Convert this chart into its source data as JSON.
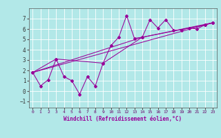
{
  "xlabel": "Windchill (Refroidissement éolien,°C)",
  "background_color": "#b2e8e8",
  "grid_color": "#ffffff",
  "line_color": "#990099",
  "xlim": [
    -0.5,
    23.5
  ],
  "ylim": [
    -1.6,
    8.0
  ],
  "xticks": [
    0,
    1,
    2,
    3,
    4,
    5,
    6,
    7,
    8,
    9,
    10,
    11,
    12,
    13,
    14,
    15,
    16,
    17,
    18,
    19,
    20,
    21,
    22,
    23
  ],
  "yticks": [
    -1,
    0,
    1,
    2,
    3,
    4,
    5,
    6,
    7
  ],
  "series1_x": [
    0,
    1,
    2,
    3,
    4,
    5,
    6,
    7,
    8,
    9,
    10,
    11,
    12,
    13,
    14,
    15,
    16,
    17,
    18,
    19,
    20,
    21,
    22,
    23
  ],
  "series1_y": [
    1.8,
    0.5,
    1.1,
    3.1,
    1.4,
    1.0,
    -0.3,
    1.4,
    0.5,
    2.7,
    4.4,
    5.2,
    7.3,
    5.1,
    5.2,
    6.9,
    6.1,
    6.9,
    5.9,
    5.9,
    6.1,
    6.0,
    6.4,
    6.6
  ],
  "series2_x": [
    0,
    3,
    9,
    14,
    22,
    23
  ],
  "series2_y": [
    1.8,
    3.1,
    2.7,
    5.2,
    6.4,
    6.6
  ],
  "series3_x": [
    0,
    23
  ],
  "series3_y": [
    1.8,
    6.6
  ],
  "series4_x": [
    0,
    14,
    23
  ],
  "series4_y": [
    1.8,
    5.2,
    6.6
  ]
}
